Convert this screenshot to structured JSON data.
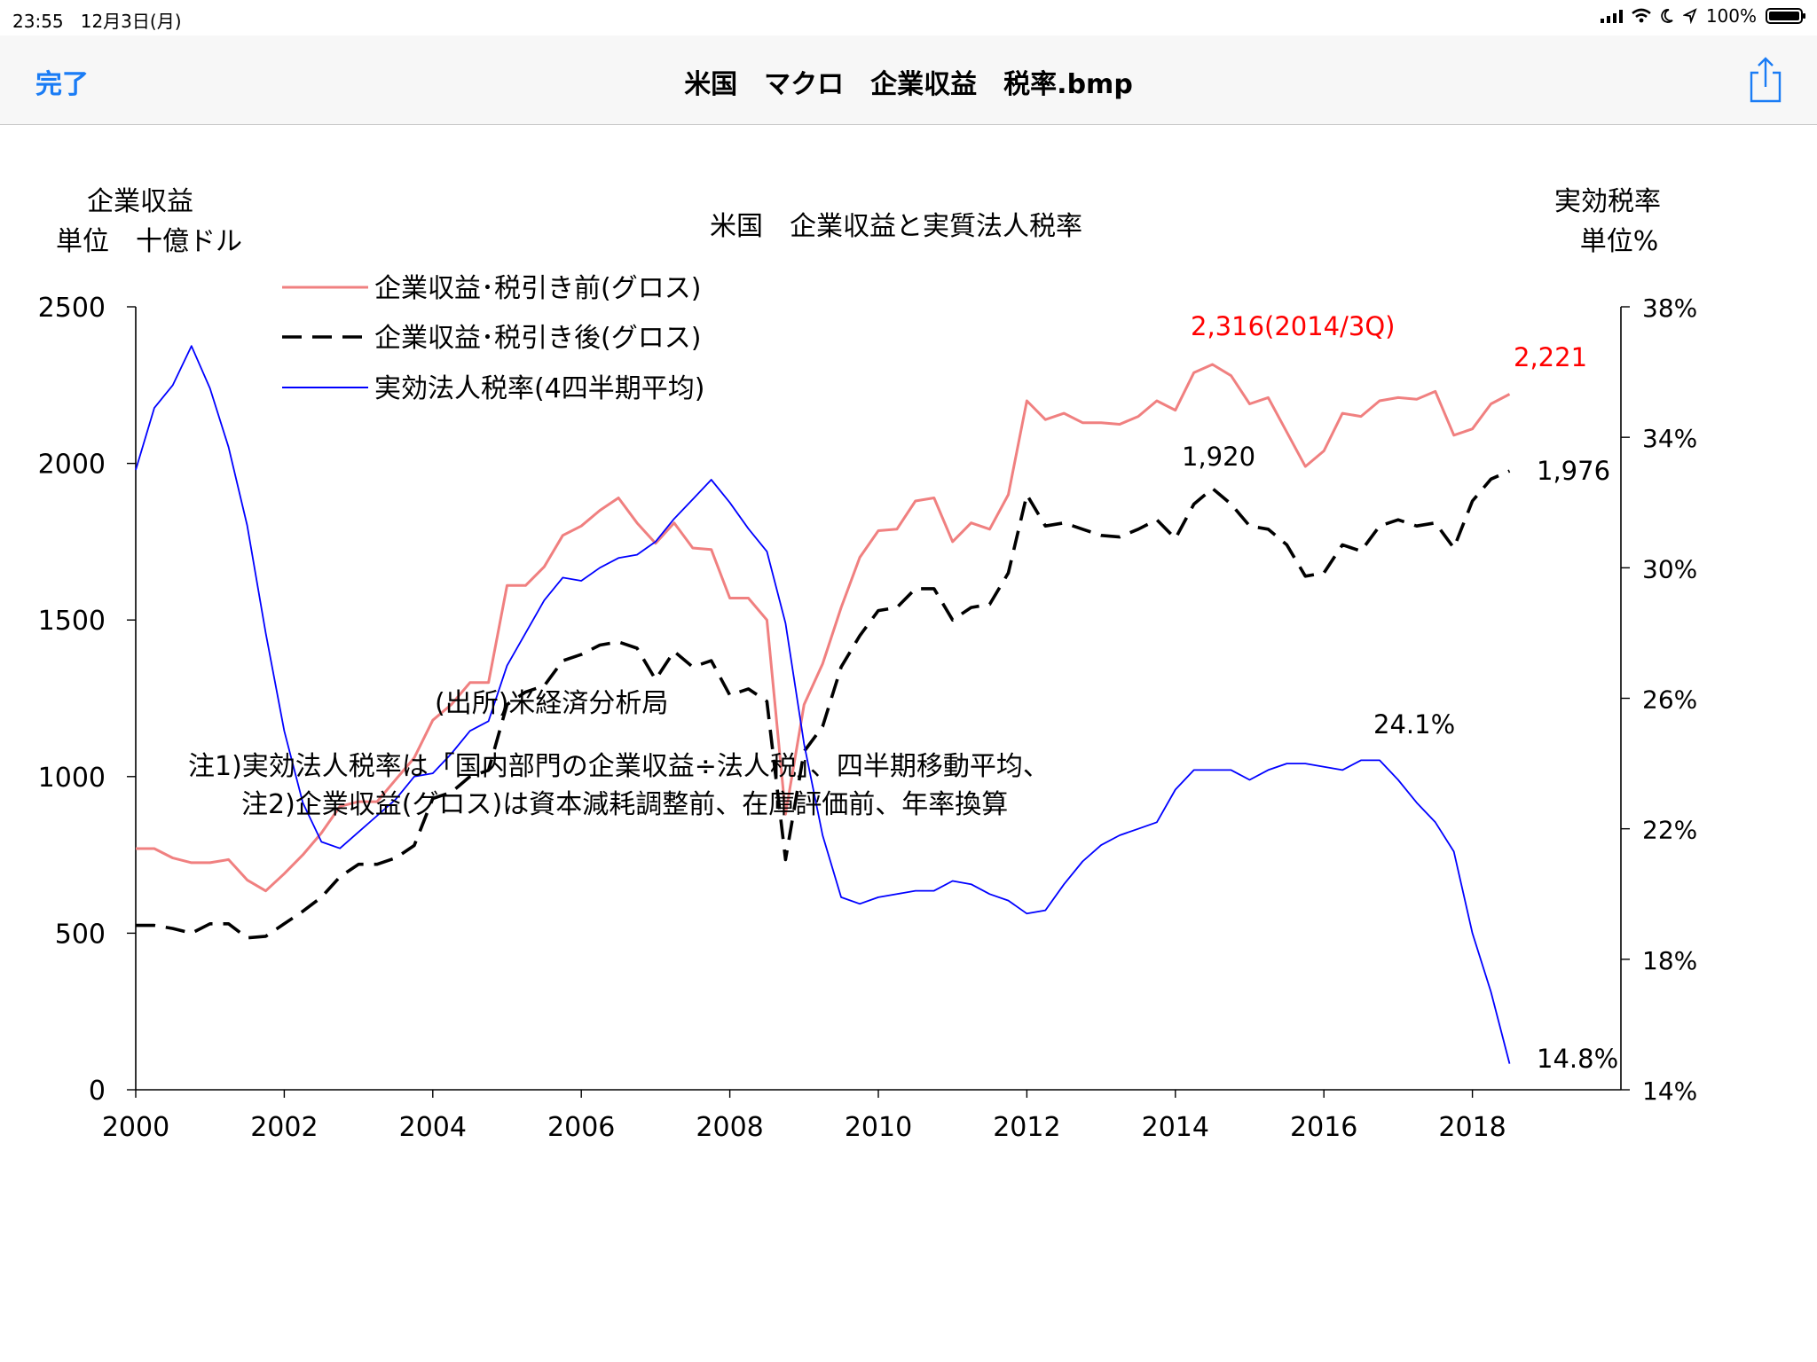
{
  "status_bar": {
    "time": "23:55",
    "date": "12月3日(月)",
    "battery": "100%",
    "battery_level": 1.0
  },
  "nav": {
    "done_label": "完了",
    "title": "米国　マクロ　企業収益　税率.bmp"
  },
  "chart_data": {
    "type": "line",
    "title": "米国　企業収益と実質法人税率",
    "left_axis_title_1": "企業収益",
    "left_axis_title_2": "単位　十億ドル",
    "right_axis_title_1": "実効税率",
    "right_axis_title_2": "単位%",
    "source": "(出所)米経済分析局",
    "note1": "注1)実効法人税率は「国内部門の企業収益÷法人税」、四半期移動平均、",
    "note2": "注2)企業収益(グロス)は資本減耗調整前、在庫評価前、年率換算",
    "legend_position": "top-left",
    "grid": false,
    "x_ticks": [
      "2000",
      "2002",
      "2004",
      "2006",
      "2008",
      "2010",
      "2012",
      "2014",
      "2016",
      "2018"
    ],
    "xlim": [
      2000,
      2020
    ],
    "y_left_ticks": [
      "0",
      "500",
      "1000",
      "1500",
      "2000",
      "2500"
    ],
    "ylim_left": [
      0,
      2500
    ],
    "y_right_ticks": [
      "14%",
      "18%",
      "22%",
      "26%",
      "30%",
      "34%",
      "38%"
    ],
    "ylim_right": [
      14,
      38
    ],
    "series": [
      {
        "name": "企業収益･税引き前(グロス)",
        "axis": "left",
        "color": "#f08080",
        "dash": "solid",
        "x": [
          2000.0,
          2000.25,
          2000.5,
          2000.75,
          2001.0,
          2001.25,
          2001.5,
          2001.75,
          2002.0,
          2002.25,
          2002.5,
          2002.75,
          2003.0,
          2003.25,
          2003.5,
          2003.75,
          2004.0,
          2004.25,
          2004.5,
          2004.75,
          2005.0,
          2005.25,
          2005.5,
          2005.75,
          2006.0,
          2006.25,
          2006.5,
          2006.75,
          2007.0,
          2007.25,
          2007.5,
          2007.75,
          2008.0,
          2008.25,
          2008.5,
          2008.75,
          2009.0,
          2009.25,
          2009.5,
          2009.75,
          2010.0,
          2010.25,
          2010.5,
          2010.75,
          2011.0,
          2011.25,
          2011.5,
          2011.75,
          2012.0,
          2012.25,
          2012.5,
          2012.75,
          2013.0,
          2013.25,
          2013.5,
          2013.75,
          2014.0,
          2014.25,
          2014.5,
          2014.75,
          2015.0,
          2015.25,
          2015.5,
          2015.75,
          2016.0,
          2016.25,
          2016.5,
          2016.75,
          2017.0,
          2017.25,
          2017.5,
          2017.75,
          2018.0,
          2018.25,
          2018.5
        ],
        "values": [
          770,
          770,
          740,
          725,
          725,
          735,
          670,
          635,
          690,
          750,
          820,
          905,
          920,
          920,
          990,
          1060,
          1180,
          1230,
          1300,
          1300,
          1610,
          1610,
          1670,
          1770,
          1800,
          1850,
          1890,
          1810,
          1745,
          1810,
          1730,
          1725,
          1570,
          1570,
          1500,
          880,
          1230,
          1360,
          1540,
          1700,
          1785,
          1790,
          1880,
          1890,
          1750,
          1810,
          1790,
          1900,
          2200,
          2140,
          2160,
          2130,
          2130,
          2125,
          2150,
          2200,
          2170,
          2290,
          2316,
          2280,
          2190,
          2210,
          2100,
          1990,
          2040,
          2160,
          2150,
          2200,
          2210,
          2205,
          2230,
          2090,
          2110,
          2190,
          2221
        ]
      },
      {
        "name": "企業収益･税引き後(グロス)",
        "axis": "left",
        "color": "#000000",
        "dash": "dashed",
        "x": [
          2000.0,
          2000.25,
          2000.5,
          2000.75,
          2001.0,
          2001.25,
          2001.5,
          2001.75,
          2002.0,
          2002.25,
          2002.5,
          2002.75,
          2003.0,
          2003.25,
          2003.5,
          2003.75,
          2004.0,
          2004.25,
          2004.5,
          2004.75,
          2005.0,
          2005.25,
          2005.5,
          2005.75,
          2006.0,
          2006.25,
          2006.5,
          2006.75,
          2007.0,
          2007.25,
          2007.5,
          2007.75,
          2008.0,
          2008.25,
          2008.5,
          2008.75,
          2009.0,
          2009.25,
          2009.5,
          2009.75,
          2010.0,
          2010.25,
          2010.5,
          2010.75,
          2011.0,
          2011.25,
          2011.5,
          2011.75,
          2012.0,
          2012.25,
          2012.5,
          2012.75,
          2013.0,
          2013.25,
          2013.5,
          2013.75,
          2014.0,
          2014.25,
          2014.5,
          2014.75,
          2015.0,
          2015.25,
          2015.5,
          2015.75,
          2016.0,
          2016.25,
          2016.5,
          2016.75,
          2017.0,
          2017.25,
          2017.5,
          2017.75,
          2018.0,
          2018.25,
          2018.5
        ],
        "values": [
          525,
          525,
          515,
          500,
          530,
          530,
          485,
          490,
          530,
          570,
          615,
          680,
          720,
          720,
          740,
          780,
          930,
          950,
          1000,
          1020,
          1230,
          1270,
          1290,
          1370,
          1390,
          1420,
          1430,
          1410,
          1310,
          1400,
          1350,
          1370,
          1260,
          1280,
          1240,
          735,
          1080,
          1160,
          1350,
          1450,
          1530,
          1540,
          1600,
          1600,
          1500,
          1540,
          1550,
          1650,
          1900,
          1800,
          1810,
          1790,
          1770,
          1765,
          1790,
          1820,
          1760,
          1870,
          1920,
          1870,
          1800,
          1790,
          1740,
          1640,
          1650,
          1740,
          1720,
          1800,
          1820,
          1800,
          1810,
          1730,
          1880,
          1950,
          1976
        ]
      },
      {
        "name": "実効法人税率(4四半期平均)",
        "axis": "right",
        "color": "#0000ff",
        "dash": "solid",
        "x": [
          2000.0,
          2000.25,
          2000.5,
          2000.75,
          2001.0,
          2001.25,
          2001.5,
          2001.75,
          2002.0,
          2002.25,
          2002.5,
          2002.75,
          2003.0,
          2003.25,
          2003.5,
          2003.75,
          2004.0,
          2004.25,
          2004.5,
          2004.75,
          2005.0,
          2005.25,
          2005.5,
          2005.75,
          2006.0,
          2006.25,
          2006.5,
          2006.75,
          2007.0,
          2007.25,
          2007.5,
          2007.75,
          2008.0,
          2008.25,
          2008.5,
          2008.75,
          2009.0,
          2009.25,
          2009.5,
          2009.75,
          2010.0,
          2010.25,
          2010.5,
          2010.75,
          2011.0,
          2011.25,
          2011.5,
          2011.75,
          2012.0,
          2012.25,
          2012.5,
          2012.75,
          2013.0,
          2013.25,
          2013.5,
          2013.75,
          2014.0,
          2014.25,
          2014.5,
          2014.75,
          2015.0,
          2015.25,
          2015.5,
          2015.75,
          2016.0,
          2016.25,
          2016.5,
          2016.75,
          2017.0,
          2017.25,
          2017.5,
          2017.75,
          2018.0,
          2018.25,
          2018.5
        ],
        "values": [
          33.0,
          34.9,
          35.6,
          36.8,
          35.5,
          33.7,
          31.3,
          28.0,
          25.0,
          22.8,
          21.6,
          21.4,
          21.9,
          22.4,
          22.9,
          23.6,
          23.7,
          24.3,
          25.0,
          25.3,
          27.0,
          28.0,
          29.0,
          29.7,
          29.6,
          30.0,
          30.3,
          30.4,
          30.8,
          31.5,
          32.1,
          32.7,
          32.0,
          31.2,
          30.5,
          28.3,
          24.6,
          21.8,
          19.9,
          19.7,
          19.9,
          20.0,
          20.1,
          20.1,
          20.4,
          20.3,
          20.0,
          19.8,
          19.4,
          19.5,
          20.3,
          21.0,
          21.5,
          21.8,
          22.0,
          22.2,
          23.2,
          23.8,
          23.8,
          23.8,
          23.5,
          23.8,
          24.0,
          24.0,
          23.9,
          23.8,
          24.1,
          24.1,
          23.5,
          22.8,
          22.2,
          21.3,
          18.8,
          17.0,
          14.8
        ]
      }
    ],
    "annotations": [
      {
        "text": "2,316(2014/3Q)",
        "color": "#ff0000"
      },
      {
        "text": "2,221",
        "color": "#ff0000"
      },
      {
        "text": "1,920",
        "color": "#000000"
      },
      {
        "text": "1,976",
        "color": "#000000"
      },
      {
        "text": "24.1%",
        "color": "#000000"
      },
      {
        "text": "14.8%",
        "color": "#000000"
      }
    ]
  }
}
